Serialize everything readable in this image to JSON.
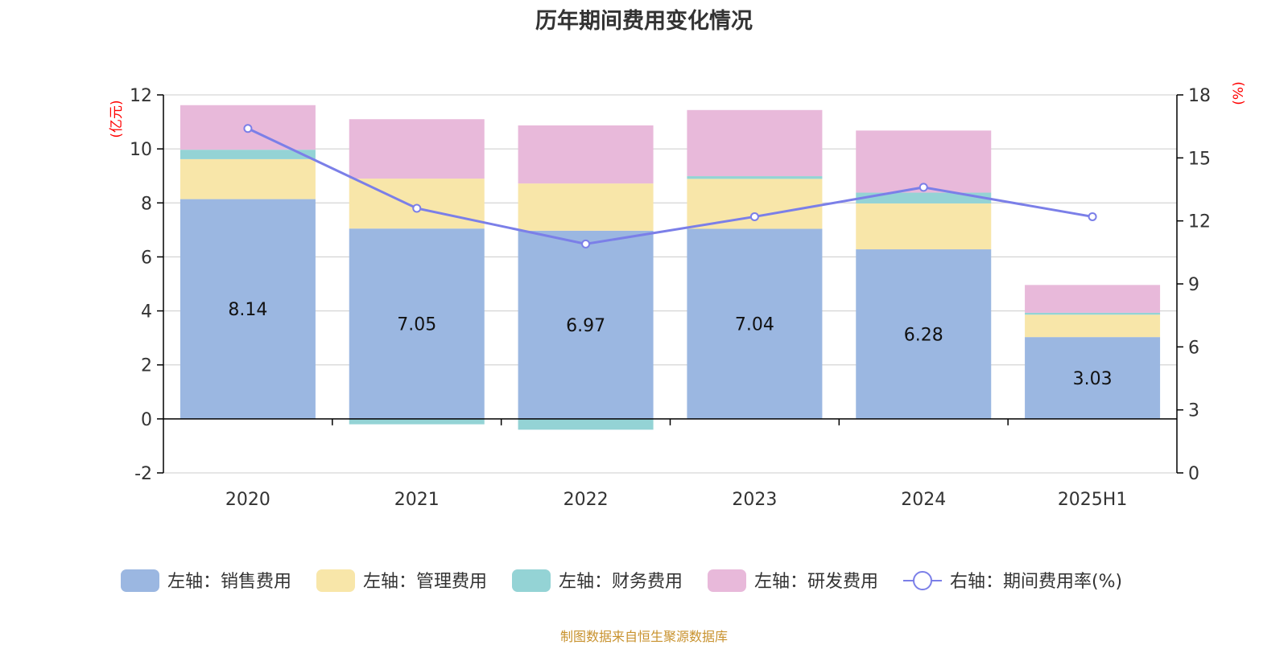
{
  "title": "历年期间费用变化情况",
  "footer": "制图数据来自恒生聚源数据库",
  "colors": {
    "sales": "#9bb7e1",
    "admin": "#f8e6a9",
    "finance": "#94d3d5",
    "rd": "#e8b9da",
    "rate": "#7b7fe8",
    "axis_unit": "#ff0000",
    "grid": "#cccccc",
    "text": "#333333"
  },
  "chart_data": {
    "type": "bar",
    "stacked": true,
    "categories": [
      "2020",
      "2021",
      "2022",
      "2023",
      "2024",
      "2025H1"
    ],
    "left_axis": {
      "unit": "(亿元)",
      "ylim": [
        -2,
        12
      ],
      "ticks": [
        -2,
        0,
        2,
        4,
        6,
        8,
        10,
        12
      ]
    },
    "right_axis": {
      "unit": "(%)",
      "ylim": [
        0,
        18
      ],
      "ticks": [
        0,
        3,
        6,
        9,
        12,
        15,
        18
      ]
    },
    "grid": true,
    "legend_position": "bottom",
    "series": [
      {
        "name": "左轴：销售费用",
        "key": "sales",
        "axis": "left",
        "values": [
          8.14,
          7.05,
          6.97,
          7.04,
          6.28,
          3.03
        ],
        "show_labels": true
      },
      {
        "name": "左轴：管理费用",
        "key": "admin",
        "axis": "left",
        "values": [
          1.48,
          1.85,
          1.75,
          1.85,
          1.7,
          0.83
        ]
      },
      {
        "name": "左轴：财务费用",
        "key": "finance",
        "axis": "left",
        "values": [
          0.35,
          -0.2,
          -0.4,
          0.1,
          0.4,
          0.07
        ]
      },
      {
        "name": "左轴：研发费用",
        "key": "rd",
        "axis": "left",
        "values": [
          1.65,
          2.2,
          2.15,
          2.45,
          2.3,
          1.03
        ]
      },
      {
        "name": "右轴：期间费用率(%)",
        "key": "rate",
        "axis": "right",
        "type": "line",
        "values": [
          16.4,
          12.6,
          10.9,
          12.2,
          13.6,
          12.2
        ]
      }
    ]
  }
}
